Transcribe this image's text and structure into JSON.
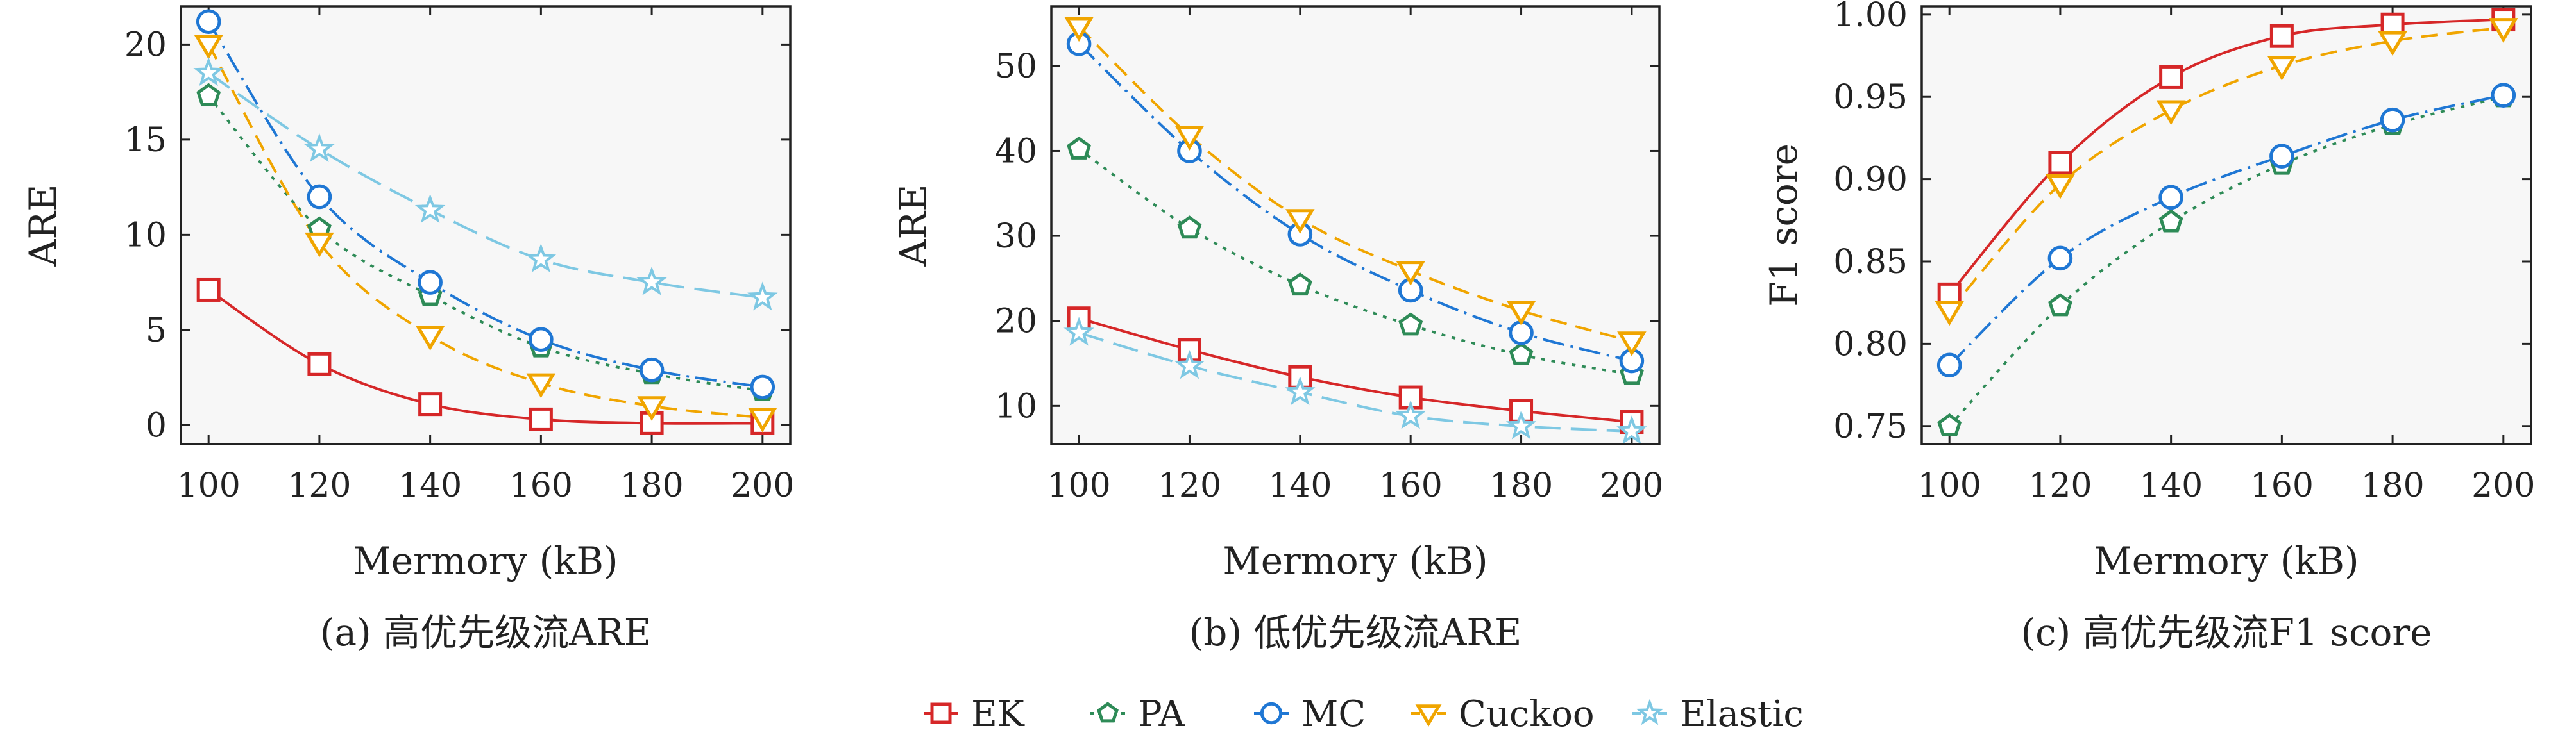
{
  "legend": [
    {
      "name": "EK",
      "color": "#d62728",
      "marker": "square",
      "dash": "solid"
    },
    {
      "name": "PA",
      "color": "#2e8b57",
      "marker": "pentagon",
      "dash": "dotted"
    },
    {
      "name": "MC",
      "color": "#1f77d4",
      "marker": "circle",
      "dash": "dashdot"
    },
    {
      "name": "Cuckoo",
      "color": "#f0a500",
      "marker": "triangle-down",
      "dash": "dashed"
    },
    {
      "name": "Elastic",
      "color": "#7ec8e3",
      "marker": "star",
      "dash": "longdash"
    }
  ],
  "chart_data": [
    {
      "type": "line",
      "caption": "(a) 高优先级流ARE",
      "xlabel": "Mermory (kB)",
      "ylabel": "ARE",
      "x": [
        100,
        120,
        140,
        160,
        180,
        200
      ],
      "xticks": [
        "100",
        "120",
        "140",
        "160",
        "180",
        "200"
      ],
      "xlim": [
        95,
        205
      ],
      "ylim": [
        -1,
        22
      ],
      "yticks": [
        "0",
        "5",
        "10",
        "15",
        "20"
      ],
      "ytick_values": [
        0,
        5,
        10,
        15,
        20
      ],
      "series": [
        {
          "name": "EK",
          "values": [
            7.1,
            3.2,
            1.1,
            0.3,
            0.1,
            0.1
          ]
        },
        {
          "name": "PA",
          "values": [
            17.3,
            10.3,
            6.8,
            4.1,
            2.7,
            1.8
          ]
        },
        {
          "name": "MC",
          "values": [
            21.2,
            12.0,
            7.5,
            4.5,
            2.9,
            2.0
          ]
        },
        {
          "name": "Cuckoo",
          "values": [
            20.0,
            9.6,
            4.7,
            2.2,
            1.0,
            0.4
          ]
        },
        {
          "name": "Elastic",
          "values": [
            18.5,
            14.5,
            11.3,
            8.7,
            7.5,
            6.7
          ]
        }
      ]
    },
    {
      "type": "line",
      "caption": "(b) 低优先级流ARE",
      "xlabel": "Mermory (kB)",
      "ylabel": "ARE",
      "x": [
        100,
        120,
        140,
        160,
        180,
        200
      ],
      "xticks": [
        "100",
        "120",
        "140",
        "160",
        "180",
        "200"
      ],
      "xlim": [
        95,
        205
      ],
      "ylim": [
        5.5,
        57
      ],
      "yticks": [
        "10",
        "20",
        "30",
        "40",
        "50"
      ],
      "ytick_values": [
        10,
        20,
        30,
        40,
        50
      ],
      "series": [
        {
          "name": "EK",
          "values": [
            20.3,
            16.6,
            13.4,
            11.0,
            9.4,
            8.1
          ]
        },
        {
          "name": "PA",
          "values": [
            40.2,
            30.9,
            24.2,
            19.5,
            16.0,
            13.7
          ]
        },
        {
          "name": "MC",
          "values": [
            52.6,
            40.0,
            30.2,
            23.6,
            18.6,
            15.3
          ]
        },
        {
          "name": "Cuckoo",
          "values": [
            54.6,
            41.8,
            32.0,
            25.9,
            21.2,
            17.6
          ]
        },
        {
          "name": "Elastic",
          "values": [
            18.6,
            14.7,
            11.6,
            8.8,
            7.6,
            7.0
          ]
        }
      ]
    },
    {
      "type": "line",
      "caption": "(c) 高优先级流F1 score",
      "xlabel": "Mermory (kB)",
      "ylabel": "F1 score",
      "x": [
        100,
        120,
        140,
        160,
        180,
        200
      ],
      "xticks": [
        "100",
        "120",
        "140",
        "160",
        "180",
        "200"
      ],
      "xlim": [
        95,
        205
      ],
      "ylim": [
        0.739,
        1.005
      ],
      "yticks": [
        "0.75",
        "0.80",
        "0.85",
        "0.90",
        "0.95",
        "1.00"
      ],
      "ytick_values": [
        0.75,
        0.8,
        0.85,
        0.9,
        0.95,
        1.0
      ],
      "series": [
        {
          "name": "EK",
          "values": [
            0.83,
            0.91,
            0.962,
            0.987,
            0.994,
            0.997
          ]
        },
        {
          "name": "PA",
          "values": [
            0.75,
            0.823,
            0.874,
            0.909,
            0.933,
            0.95
          ]
        },
        {
          "name": "MC",
          "values": [
            0.787,
            0.852,
            0.889,
            0.914,
            0.936,
            0.951
          ]
        },
        {
          "name": "Cuckoo",
          "values": [
            0.82,
            0.897,
            0.942,
            0.969,
            0.984,
            0.992
          ]
        }
      ]
    }
  ]
}
